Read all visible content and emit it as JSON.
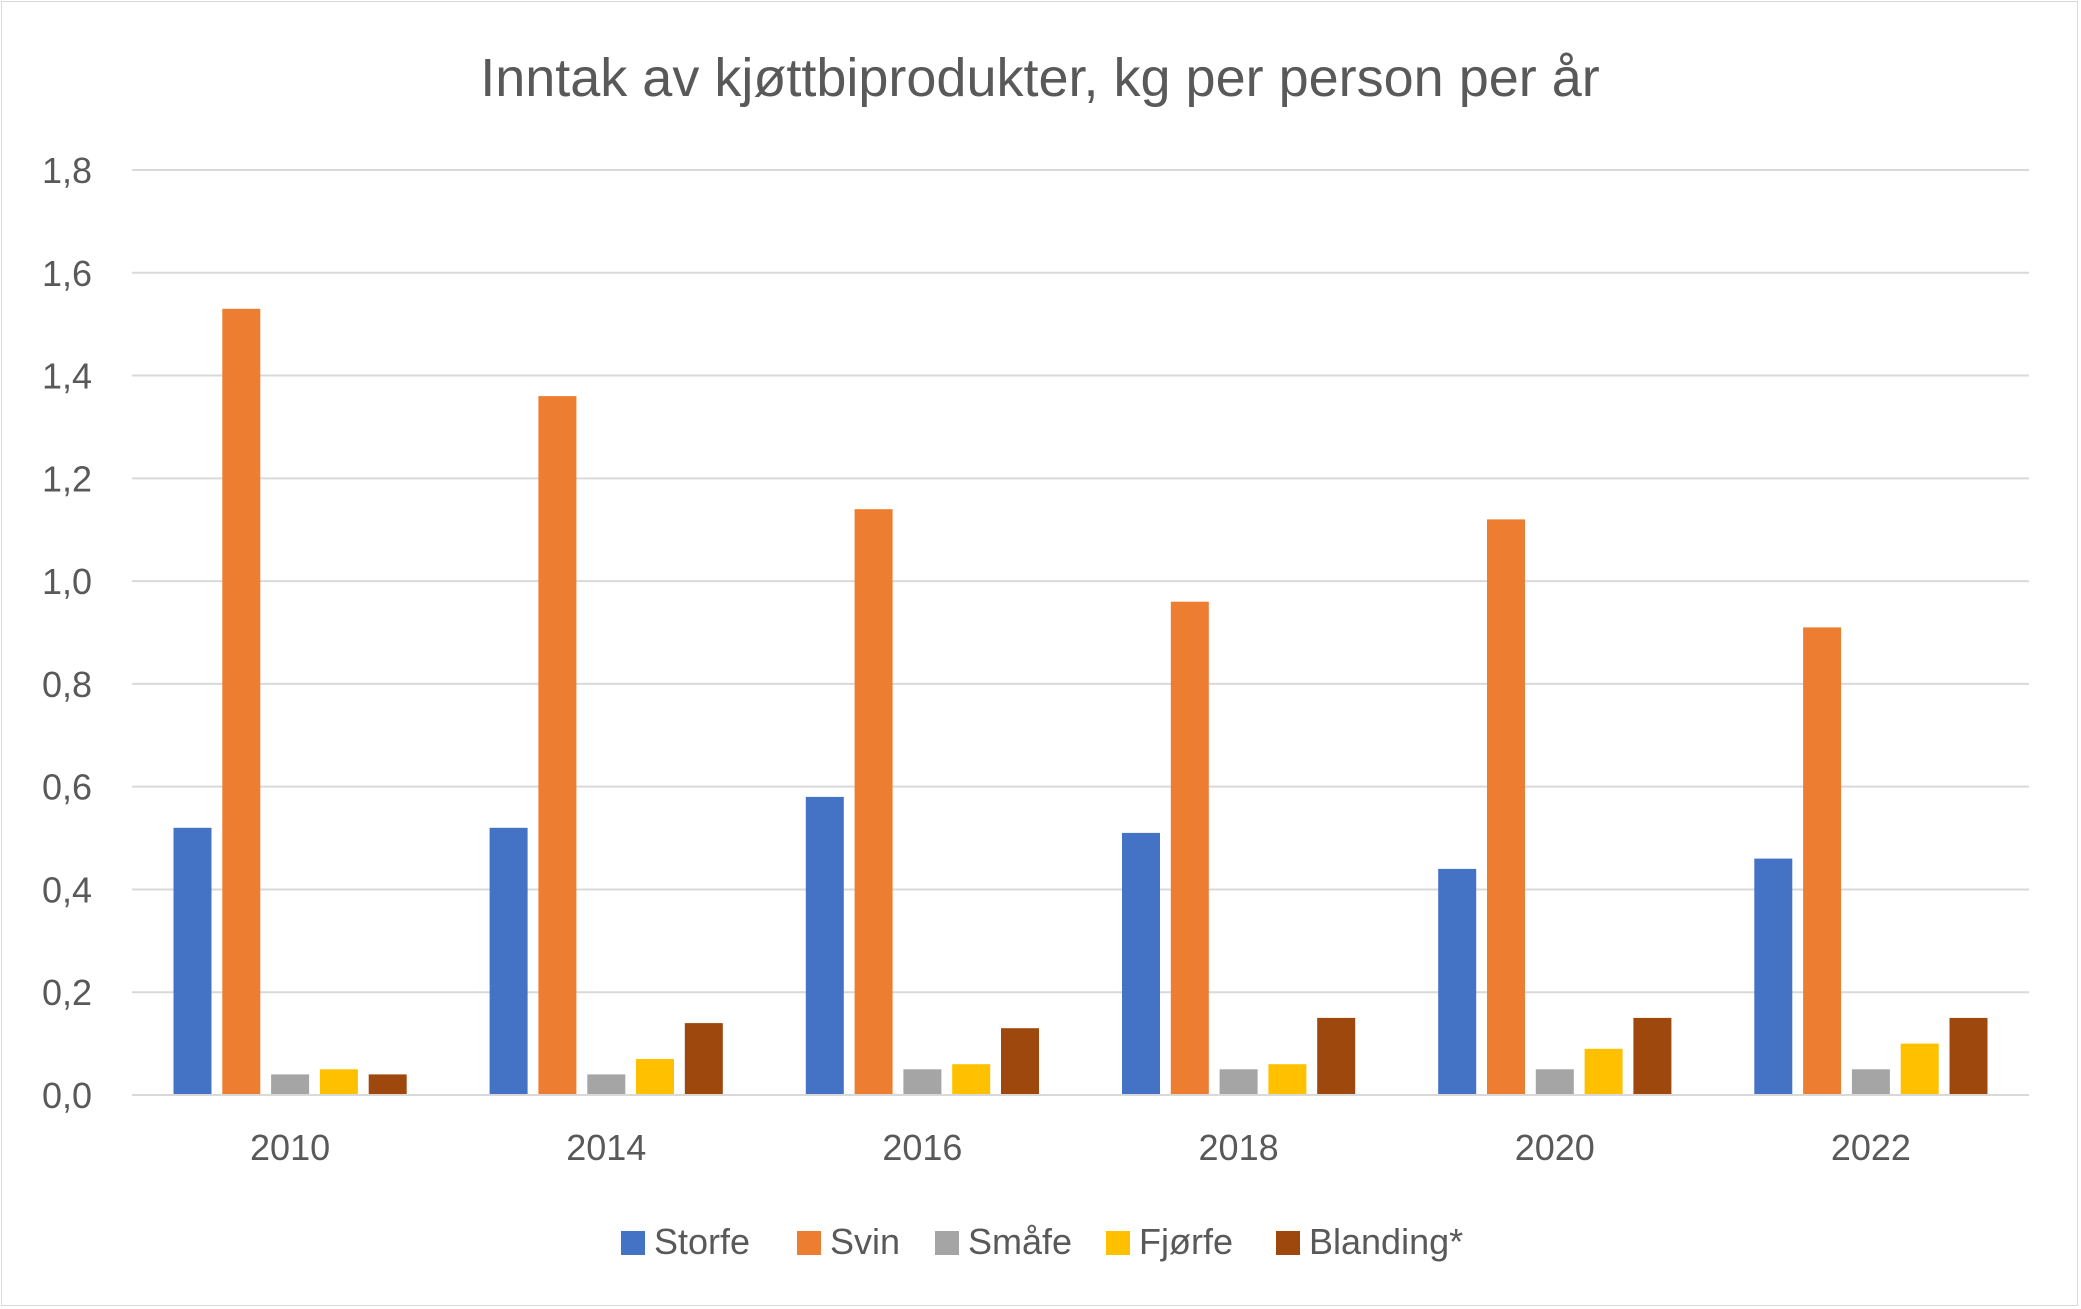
{
  "chart_data": {
    "type": "bar",
    "title": "Inntak av kjøttbiprodukter, kg per person per år",
    "xlabel": "",
    "ylabel": "",
    "categories": [
      "2010",
      "2014",
      "2016",
      "2018",
      "2020",
      "2022"
    ],
    "ylim": [
      0,
      1.8
    ],
    "yticks": [
      0,
      0.2,
      0.4,
      0.6,
      0.8,
      1.0,
      1.2,
      1.4,
      1.6,
      1.8
    ],
    "ytick_labels": [
      "0,0",
      "0,2",
      "0,4",
      "0,6",
      "0,8",
      "1,0",
      "1,2",
      "1,4",
      "1,6",
      "1,8"
    ],
    "grid": true,
    "legend_position": "bottom",
    "series": [
      {
        "name": "Storfe",
        "color": "#4472C4",
        "values": [
          0.52,
          0.52,
          0.58,
          0.51,
          0.44,
          0.46
        ]
      },
      {
        "name": "Svin",
        "color": "#ED7D31",
        "values": [
          1.53,
          1.36,
          1.14,
          0.96,
          1.12,
          0.91
        ]
      },
      {
        "name": "Småfe",
        "color": "#A5A5A5",
        "values": [
          0.04,
          0.04,
          0.05,
          0.05,
          0.05,
          0.05
        ]
      },
      {
        "name": "Fjørfe",
        "color": "#FFC000",
        "values": [
          0.05,
          0.07,
          0.06,
          0.06,
          0.09,
          0.1
        ]
      },
      {
        "name": "Blanding*",
        "color": "#9E480E",
        "values": [
          0.04,
          0.14,
          0.13,
          0.15,
          0.15,
          0.15
        ]
      }
    ]
  }
}
